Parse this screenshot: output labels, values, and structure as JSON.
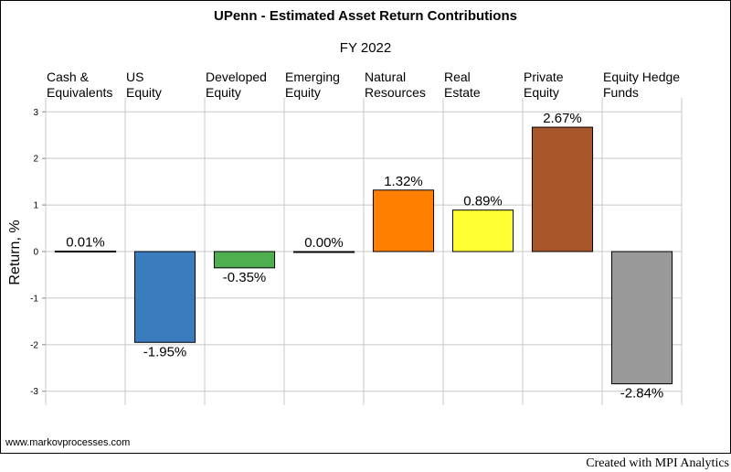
{
  "chart_data": {
    "type": "bar",
    "title": "UPenn - Estimated Asset Return Contributions",
    "subtitle": "FY 2022",
    "ylabel": "Return, %",
    "xlabel": "",
    "ylim": [
      -3.3,
      3.3
    ],
    "yticks": [
      3,
      2,
      1,
      0,
      -1,
      -2,
      -3
    ],
    "grid": true,
    "categories": [
      [
        "Cash &",
        "Equivalents"
      ],
      [
        "US",
        "Equity"
      ],
      [
        "Developed",
        "Equity"
      ],
      [
        "Emerging",
        "Equity"
      ],
      [
        "Natural",
        "Resources"
      ],
      [
        "Real",
        "Estate"
      ],
      [
        "Private",
        "Equity"
      ],
      [
        "Equity Hedge",
        "Funds"
      ]
    ],
    "values": [
      0.01,
      -1.95,
      -0.35,
      0.0,
      1.32,
      0.89,
      2.67,
      -2.84
    ],
    "value_labels": [
      "0.01%",
      "-1.95%",
      "-0.35%",
      "0.00%",
      "1.32%",
      "0.89%",
      "2.67%",
      "-2.84%"
    ],
    "colors": [
      "#c0c0c0",
      "#3a7dbf",
      "#4fae4f",
      "#c0c0c0",
      "#ff8000",
      "#ffff33",
      "#a8552a",
      "#999999"
    ]
  },
  "footer": {
    "website": "www.markovprocesses.com",
    "credit": "Created with MPI Analytics"
  }
}
